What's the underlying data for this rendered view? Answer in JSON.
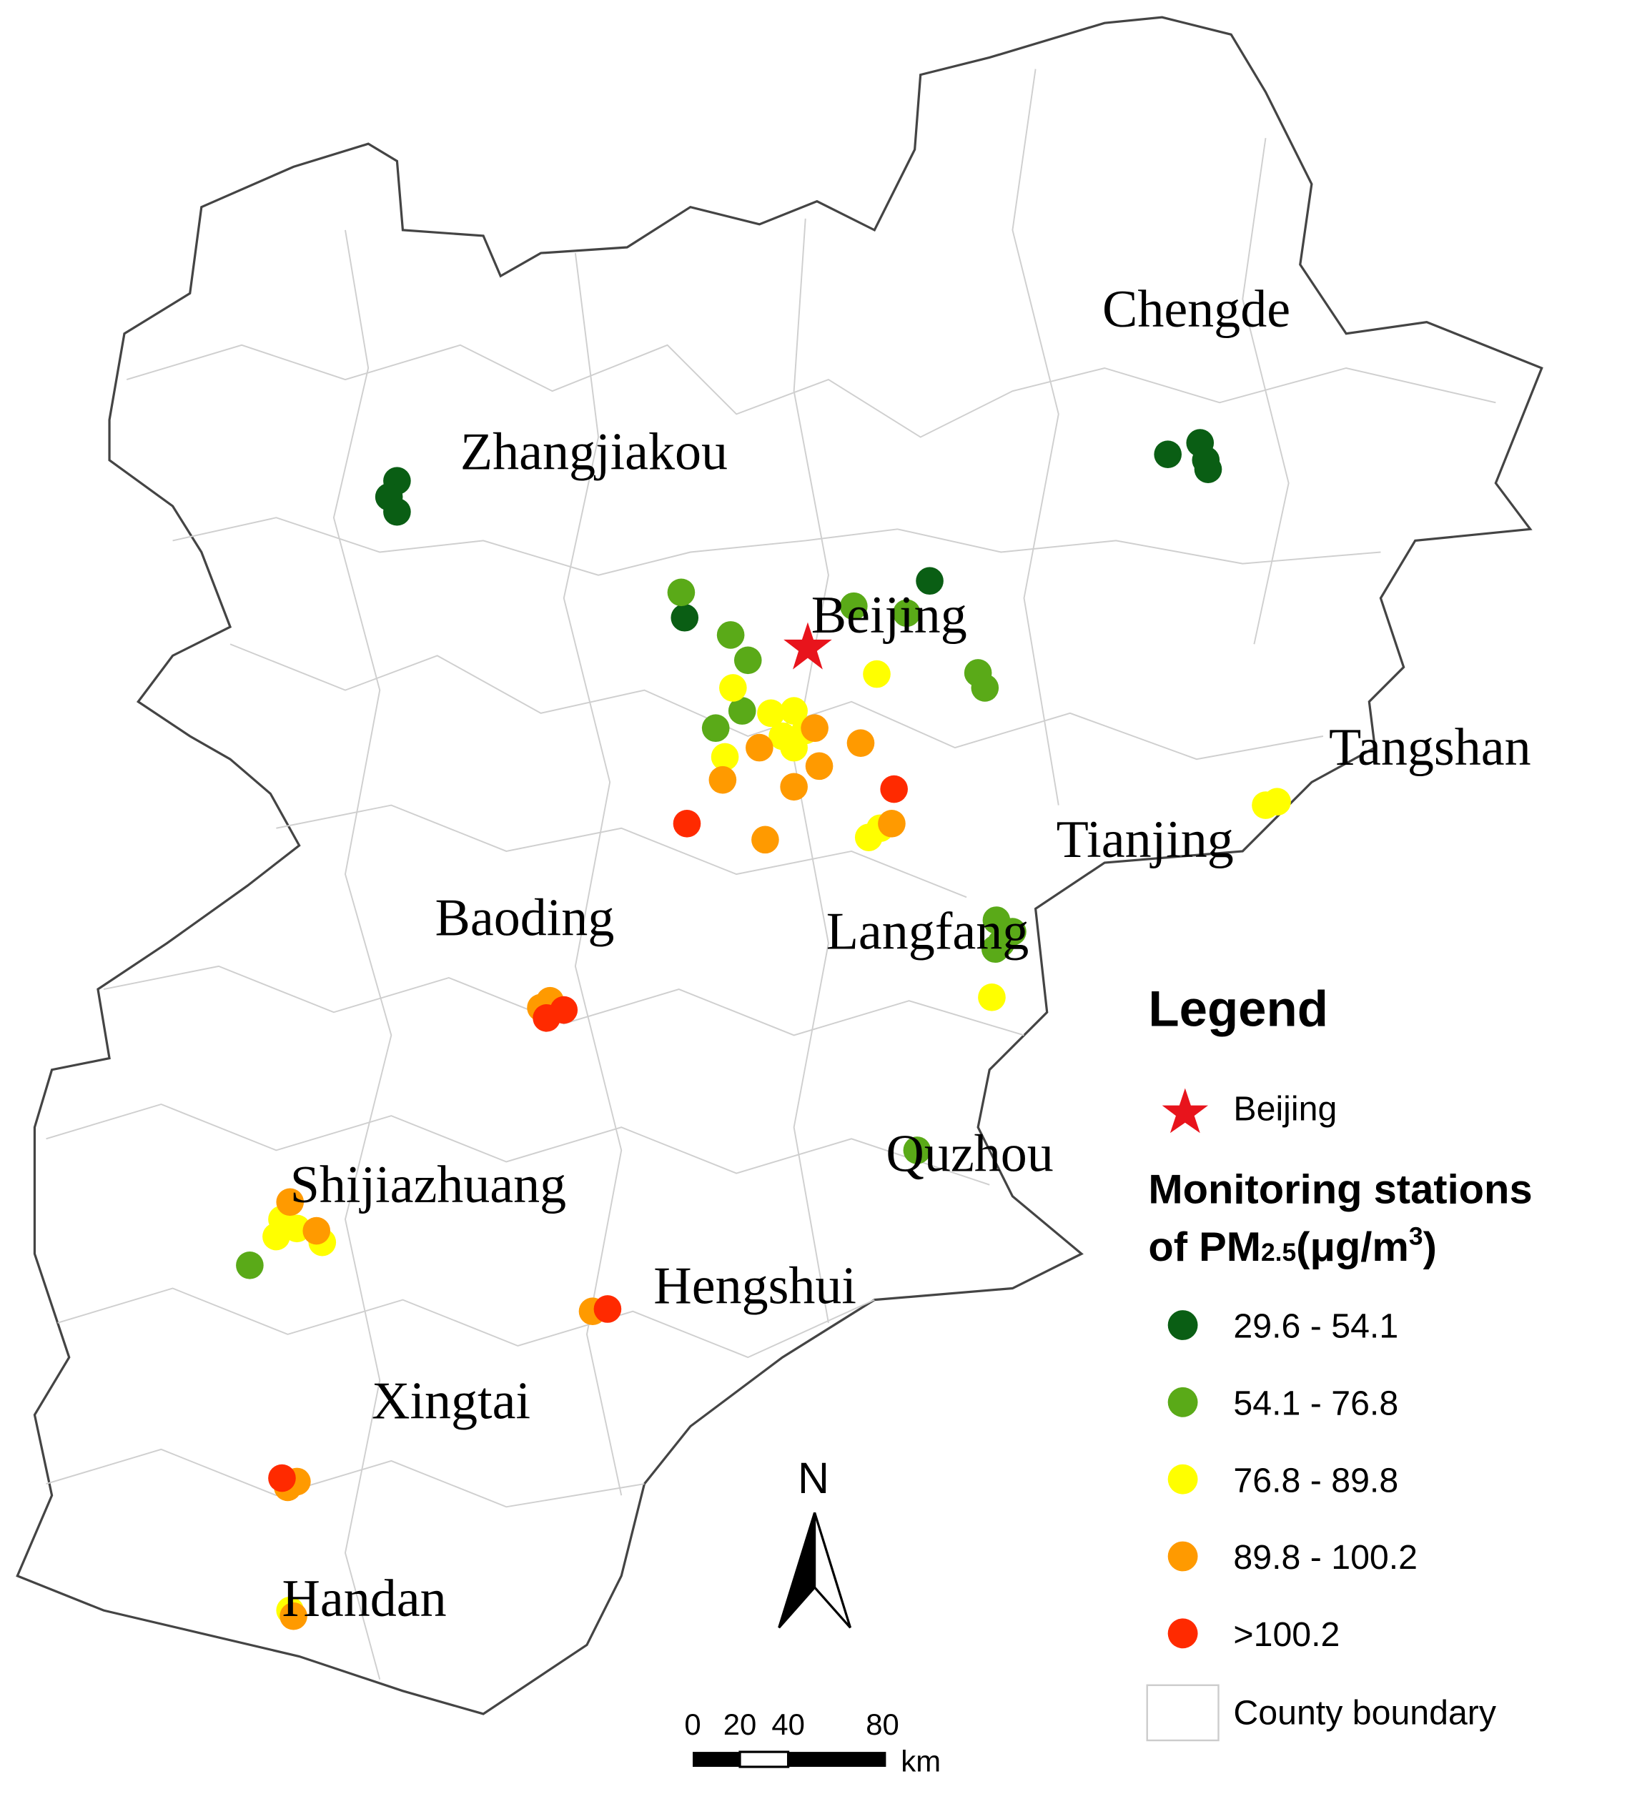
{
  "map": {
    "cities": [
      "Chengde",
      "Zhangjiakou",
      "Beijing",
      "Tangshan",
      "Tianjing",
      "Baoding",
      "Langfang",
      "Quzhou",
      "Shijiazhuang",
      "Hengshui",
      "Xingtai",
      "Handan"
    ],
    "north": "N",
    "scale_bar": {
      "labels": [
        "0",
        "20",
        "40",
        "80"
      ],
      "unit": "km"
    },
    "legend": {
      "title": "Legend",
      "capital": {
        "label": "Beijing",
        "color": "#e8141c"
      },
      "stations_title": {
        "line1": "Monitoring stations",
        "line2_parts": [
          "of PM",
          "2.5",
          "(μg/m",
          "3",
          ")"
        ]
      },
      "classes": [
        {
          "label": "29.6 - 54.1",
          "color": "#0a5e14"
        },
        {
          "label": "54.1 - 76.8",
          "color": "#5aaa18"
        },
        {
          "label": "76.8 - 89.8",
          "color": "#ffff00"
        },
        {
          "label": "89.8 - 100.2",
          "color": "#ff9a00"
        },
        {
          "label": ">100.2",
          "color": "#ff2a00"
        }
      ],
      "boundary": "County boundary"
    }
  }
}
